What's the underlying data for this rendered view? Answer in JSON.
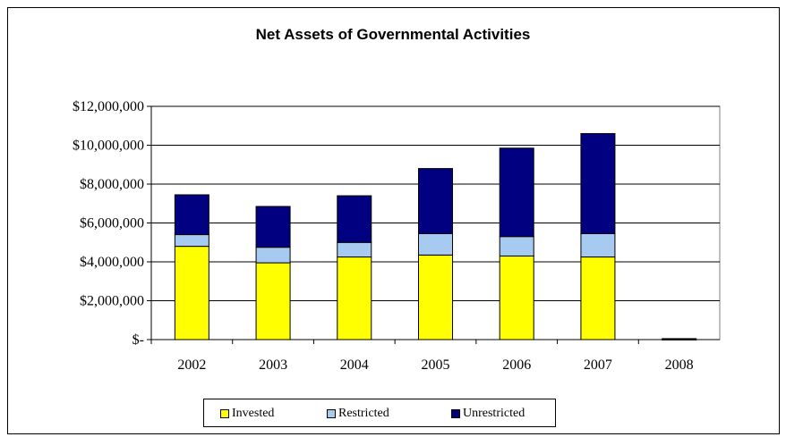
{
  "chart_data": {
    "type": "bar",
    "stacked": true,
    "title": "Net Assets of Governmental Activities",
    "categories": [
      "2002",
      "2003",
      "2004",
      "2005",
      "2006",
      "2007",
      "2008"
    ],
    "series": [
      {
        "name": "Invested",
        "color": "#ffff00",
        "values": [
          4800000,
          3950000,
          4250000,
          4350000,
          4300000,
          4250000,
          0
        ]
      },
      {
        "name": "Restricted",
        "color": "#a6caf0",
        "values": [
          600000,
          800000,
          750000,
          1100000,
          1000000,
          1200000,
          0
        ]
      },
      {
        "name": "Unrestricted",
        "color": "#000080",
        "values": [
          2050000,
          2100000,
          2400000,
          3350000,
          4550000,
          5150000,
          50000
        ]
      }
    ],
    "yticks": [
      "$12,000,000",
      "$10,000,000",
      "$8,000,000",
      "$6,000,000",
      "$4,000,000",
      "$2,000,000",
      "$-"
    ],
    "ylim": [
      0,
      12000000
    ],
    "grid": true,
    "legend": "bottom"
  }
}
